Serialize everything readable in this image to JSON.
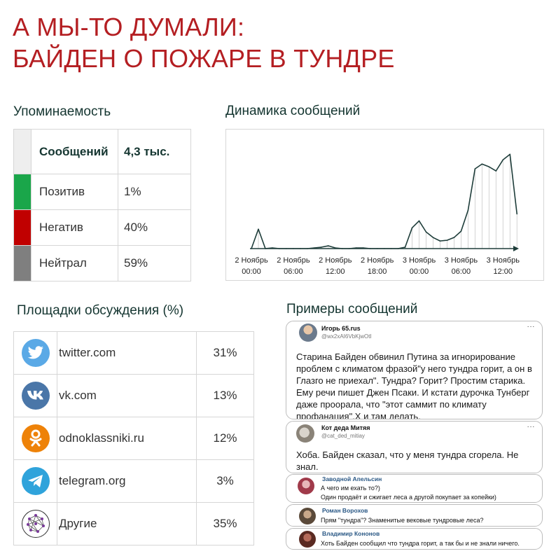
{
  "title": {
    "line1": "А МЫ-ТО ДУМАЛИ:",
    "line2": "БАЙДЕН О ПОЖАРЕ В ТУНДРЕ"
  },
  "mentions": {
    "heading": "Упоминаемость",
    "header": {
      "label": "Сообщений",
      "value": "4,3 тыс."
    },
    "rows": [
      {
        "label": "Позитив",
        "value": "1%",
        "color": "#1aa64a"
      },
      {
        "label": "Негатив",
        "value": "40%",
        "color": "#c00000"
      },
      {
        "label": "Нейтрал",
        "value": "59%",
        "color": "#7f7f7f"
      }
    ],
    "header_color": "#eeeeee"
  },
  "dynamics": {
    "heading": "Динамика сообщений",
    "ticks": [
      {
        "date": "2 Ноябрь",
        "time": "00:00"
      },
      {
        "date": "2 Ноябрь",
        "time": "06:00"
      },
      {
        "date": "2 Ноябрь",
        "time": "12:00"
      },
      {
        "date": "2 Ноябрь",
        "time": "18:00"
      },
      {
        "date": "3 Ноябрь",
        "time": "00:00"
      },
      {
        "date": "3 Ноябрь",
        "time": "06:00"
      },
      {
        "date": "3 Ноябрь",
        "time": "12:00"
      }
    ],
    "line_color": "#1e3d3a"
  },
  "chart_data": {
    "type": "line",
    "x_hours": [
      0,
      1,
      2,
      3,
      4,
      5,
      6,
      7,
      8,
      9,
      10,
      11,
      12,
      13,
      14,
      15,
      16,
      17,
      18,
      19,
      20,
      21,
      22,
      23,
      24,
      25,
      26,
      27,
      28,
      29,
      30,
      31,
      32,
      33,
      34,
      35,
      36,
      37,
      38
    ],
    "x_start": "2 Ноябрь 00:00",
    "values": [
      0,
      28,
      0,
      1,
      0,
      0,
      0,
      0,
      0,
      1,
      2,
      4,
      1,
      0,
      0,
      1,
      1,
      0,
      0,
      0,
      0,
      0,
      2,
      30,
      40,
      24,
      16,
      11,
      12,
      16,
      25,
      55,
      115,
      122,
      118,
      112,
      128,
      136,
      50
    ],
    "xlabel": "",
    "ylabel": "",
    "grid": false
  },
  "platforms": {
    "heading": "Площадки обсуждения (%)",
    "rows": [
      {
        "name": "twitter.com",
        "pct": "31%",
        "icon": "twitter-icon",
        "color": "#5aa9e6"
      },
      {
        "name": "vk.com",
        "pct": "13%",
        "icon": "vk-icon",
        "color": "#4a76a8"
      },
      {
        "name": "odnoklassniki.ru",
        "pct": "12%",
        "icon": "odnoklassniki-icon",
        "color": "#ee8208"
      },
      {
        "name": "telegram.org",
        "pct": "3%",
        "icon": "telegram-icon",
        "color": "#2fa3db"
      },
      {
        "name": "Другие",
        "pct": "35%",
        "icon": "network-icon",
        "color": "#333333"
      }
    ]
  },
  "examples": {
    "heading": "Примеры сообщений",
    "posts": [
      {
        "name": "Игорь 65.rus",
        "handle": "@wx2xAI6VbKjwOtI",
        "text": "Старина Байден обвинил Путина за игнорирование проблем с климатом фразой\"у него тундра горит, а он в Глазго не приехал\". Тундра? Горит? Простим старика. Ему речи пишет Джен Псаки. И кстати дурочка Тунберг даже проорала, что \"этот саммит по климату профанация\".Х    и там делать."
      },
      {
        "name": "Кот деда Митяя",
        "handle": "@cat_ded_mitiay",
        "text": "Хоба. Байден сказал, что у меня тундра сгорела. Не знал."
      },
      {
        "name": "Заводной Апельсин",
        "line1": "А чего им ехать то?)",
        "line2": "Один продаёт и сжигает леса а другой покупает за копейки)"
      },
      {
        "name": "Роман Ворохов",
        "line1": "Прям \"тундра\"? Знаменитые вековые тундровые леса?"
      },
      {
        "name": "Владимир Кононов",
        "line1": "Хоть Байден сообщил что тундра горит, а так бы и не знали ничего."
      }
    ],
    "more": "···"
  }
}
